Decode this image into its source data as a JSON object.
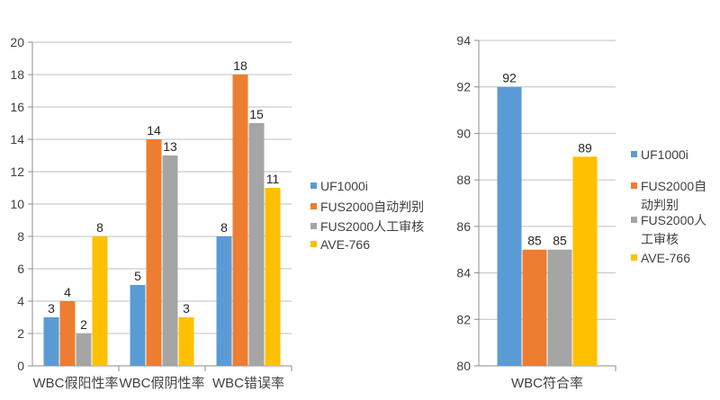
{
  "colors": {
    "UF1000i": "#5b9bd5",
    "FUS2000自动判别": "#ed7d31",
    "FUS2000人工审核": "#a5a5a5",
    "AVE-766": "#ffc000",
    "grid": "#bfbfbf",
    "axis": "#8c8c8c",
    "text": "#404040"
  },
  "chart_data": [
    {
      "type": "bar",
      "title": "",
      "xlabel": "",
      "ylabel": "",
      "categories": [
        "WBC假阳性率",
        "WBC假阴性率",
        "WBC错误率"
      ],
      "series": [
        {
          "name": "UF1000i",
          "values": [
            3,
            5,
            8
          ]
        },
        {
          "name": "FUS2000自动判别",
          "values": [
            4,
            14,
            18
          ]
        },
        {
          "name": "FUS2000人工审核",
          "values": [
            2,
            13,
            15
          ]
        },
        {
          "name": "AVE-766",
          "values": [
            8,
            3,
            11
          ]
        }
      ],
      "ylim": [
        0,
        20
      ],
      "yticks": [
        0,
        2,
        4,
        6,
        8,
        10,
        12,
        14,
        16,
        18,
        20
      ],
      "grid": true,
      "legend": "right",
      "legend_lines": [
        [
          "UF1000i"
        ],
        [
          "FUS2000自动判别"
        ],
        [
          "FUS2000人工审核"
        ],
        [
          "AVE-766"
        ]
      ]
    },
    {
      "type": "bar",
      "title": "",
      "xlabel": "",
      "ylabel": "",
      "categories": [
        "WBC符合率"
      ],
      "series": [
        {
          "name": "UF1000i",
          "values": [
            92
          ]
        },
        {
          "name": "FUS2000自动判别",
          "values": [
            85
          ]
        },
        {
          "name": "FUS2000人工审核",
          "values": [
            85
          ]
        },
        {
          "name": "AVE-766",
          "values": [
            89
          ]
        }
      ],
      "ylim": [
        80,
        94
      ],
      "yticks": [
        80,
        82,
        84,
        86,
        88,
        90,
        92,
        94
      ],
      "grid": true,
      "legend": "right",
      "legend_lines": [
        [
          "UF1000i"
        ],
        [
          "FUS2000自",
          "动判别"
        ],
        [
          "FUS2000人",
          "工审核"
        ],
        [
          "AVE-766"
        ]
      ]
    }
  ]
}
